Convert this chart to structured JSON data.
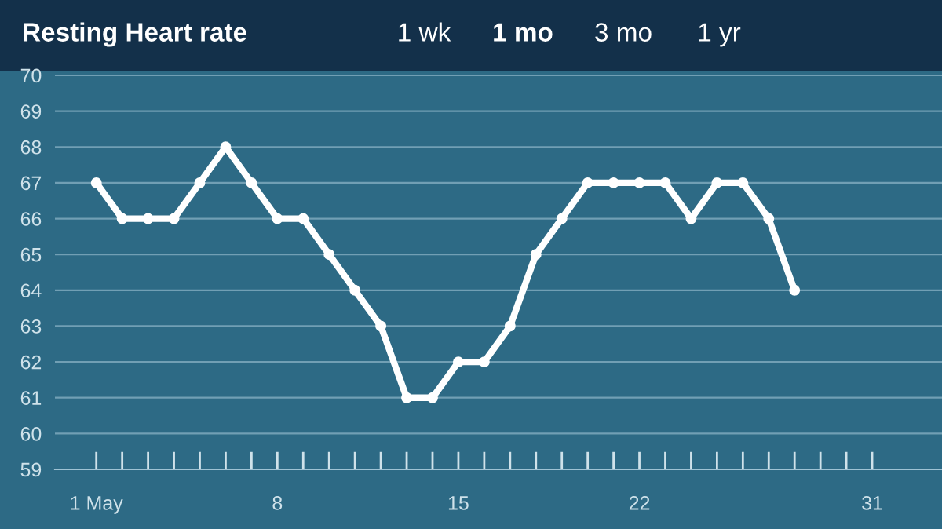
{
  "chart_data": {
    "type": "line",
    "title": "Resting Heart rate",
    "annotations": [
      "1 wk",
      "1 mo",
      "3 mo",
      "1 yr"
    ],
    "x": [
      1,
      2,
      3,
      4,
      5,
      6,
      7,
      8,
      9,
      10,
      11,
      12,
      13,
      14,
      15,
      16,
      17,
      18,
      19,
      20,
      21,
      22,
      23,
      24,
      25,
      26,
      27,
      28
    ],
    "series": [
      {
        "color": "#ffffff",
        "values": [
          67,
          66,
          66,
          66,
          67,
          68,
          67,
          66,
          66,
          65,
          64,
          63,
          61,
          61,
          62,
          62,
          63,
          65,
          66,
          67,
          67,
          67,
          67,
          66,
          67,
          67,
          66,
          64
        ]
      }
    ],
    "xlim": [
      -0.6,
      33.7
    ],
    "xticks": [
      {
        "value": 1,
        "label": "1 May"
      },
      {
        "value": 2,
        "label": null
      },
      {
        "value": 3,
        "label": null
      },
      {
        "value": 4,
        "label": null
      },
      {
        "value": 5,
        "label": null
      },
      {
        "value": 6,
        "label": null
      },
      {
        "value": 7,
        "label": null
      },
      8,
      {
        "value": 9,
        "label": null
      },
      {
        "value": 10,
        "label": null
      },
      {
        "value": 11,
        "label": null
      },
      {
        "value": 12,
        "label": null
      },
      {
        "value": 13,
        "label": null
      },
      {
        "value": 14,
        "label": null
      },
      15,
      {
        "value": 16,
        "label": null
      },
      {
        "value": 17,
        "label": null
      },
      {
        "value": 18,
        "label": null
      },
      {
        "value": 19,
        "label": null
      },
      {
        "value": 20,
        "label": null
      },
      {
        "value": 21,
        "label": null
      },
      22,
      {
        "value": 23,
        "label": null
      },
      {
        "value": 24,
        "label": null
      },
      {
        "value": 25,
        "label": null
      },
      {
        "value": 26,
        "label": null
      },
      {
        "value": 27,
        "label": null
      },
      {
        "value": 28,
        "label": null
      },
      {
        "value": 29,
        "label": null
      },
      {
        "value": 30,
        "label": null
      },
      31
    ],
    "ylim": [
      59,
      70
    ],
    "yticks": [
      59,
      60,
      61,
      62,
      63,
      64,
      65,
      66,
      67,
      68,
      69,
      70
    ],
    "grid": "y",
    "marker": "circle",
    "line_style": "solid",
    "legend": false
  }
}
